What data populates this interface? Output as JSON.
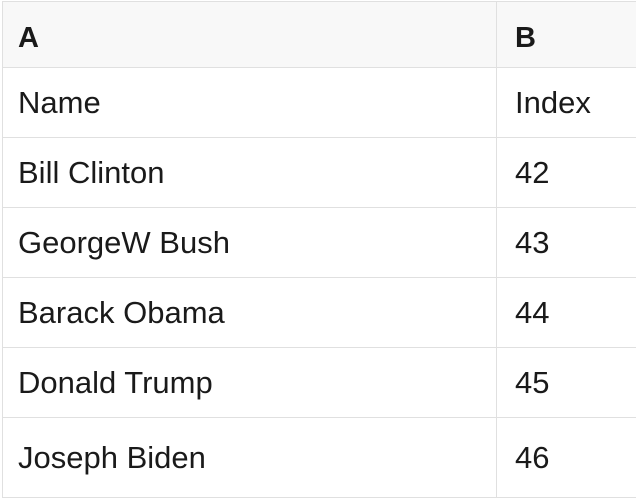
{
  "table": {
    "column_headers": [
      "A",
      "B"
    ],
    "rows": [
      [
        "Name",
        "Index"
      ],
      [
        "Bill Clinton",
        "42"
      ],
      [
        "GeorgeW Bush",
        "43"
      ],
      [
        "Barack Obama",
        "44"
      ],
      [
        "Donald Trump",
        "45"
      ],
      [
        "Joseph Biden",
        "46"
      ]
    ]
  },
  "colors": {
    "background": "#ffffff",
    "header_bg": "#f8f8f8",
    "border": "#e0e0e0",
    "text": "#1a1a1a"
  }
}
